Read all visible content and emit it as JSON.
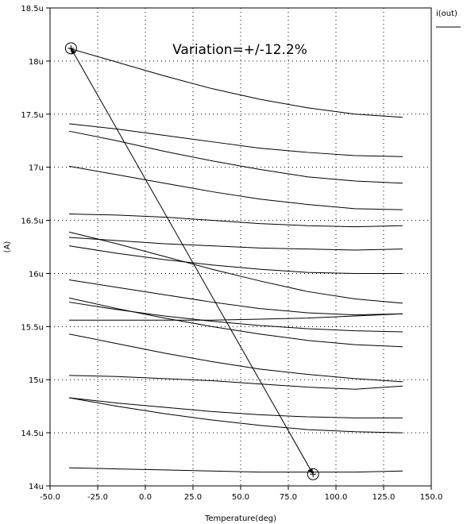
{
  "chart_data": {
    "type": "line",
    "xlabel": "Temperature(deg)",
    "ylabel": "(A)",
    "xlim": [
      -50,
      150
    ],
    "ylim": [
      14.0,
      18.5
    ],
    "x_ticks": [
      -50,
      -25,
      0,
      25,
      50,
      75,
      100,
      125,
      150
    ],
    "x_tick_labels": [
      "-50.0",
      "-25.0",
      "0.0",
      "25.0",
      "50.0",
      "75.0",
      "100.0",
      "125.0",
      "150.0"
    ],
    "y_ticks": [
      14.0,
      14.5,
      15.0,
      15.5,
      16.0,
      16.5,
      17.0,
      17.5,
      18.0,
      18.5
    ],
    "y_tick_labels": [
      "14u",
      "14.5u",
      "15u",
      "15.5u",
      "16u",
      "16.5u",
      "17u",
      "17.5u",
      "18u",
      "18.5u"
    ],
    "grid": true,
    "legend": {
      "label": "i(out)",
      "placement": "top-right"
    },
    "annotation": "Variation=+/-12.2%",
    "x": [
      -40,
      -15,
      10,
      35,
      60,
      85,
      110,
      135
    ],
    "series": [
      {
        "values": [
          18.12,
          17.99,
          17.86,
          17.74,
          17.64,
          17.56,
          17.5,
          17.47
        ]
      },
      {
        "values": [
          17.41,
          17.36,
          17.3,
          17.24,
          17.18,
          17.14,
          17.11,
          17.1
        ]
      },
      {
        "values": [
          17.34,
          17.25,
          17.15,
          17.06,
          16.98,
          16.91,
          16.87,
          16.85
        ]
      },
      {
        "values": [
          17.01,
          16.93,
          16.85,
          16.77,
          16.7,
          16.65,
          16.61,
          16.6
        ]
      },
      {
        "values": [
          16.56,
          16.55,
          16.53,
          16.5,
          16.47,
          16.45,
          16.44,
          16.45
        ]
      },
      {
        "values": [
          16.39,
          16.28,
          16.16,
          16.04,
          15.93,
          15.83,
          15.76,
          15.72
        ]
      },
      {
        "values": [
          16.34,
          16.31,
          16.28,
          16.26,
          16.24,
          16.23,
          16.22,
          16.23
        ]
      },
      {
        "values": [
          16.26,
          16.19,
          16.13,
          16.08,
          16.04,
          16.01,
          16.0,
          16.0
        ]
      },
      {
        "values": [
          15.94,
          15.87,
          15.8,
          15.73,
          15.67,
          15.63,
          15.61,
          15.62
        ]
      },
      {
        "values": [
          15.77,
          15.67,
          15.58,
          15.5,
          15.43,
          15.37,
          15.33,
          15.31
        ]
      },
      {
        "values": [
          15.73,
          15.66,
          15.6,
          15.55,
          15.51,
          15.48,
          15.46,
          15.45
        ]
      },
      {
        "values": [
          15.56,
          15.56,
          15.56,
          15.56,
          15.57,
          15.58,
          15.6,
          15.62
        ]
      },
      {
        "values": [
          15.43,
          15.34,
          15.25,
          15.17,
          15.1,
          15.05,
          15.01,
          14.98
        ]
      },
      {
        "values": [
          15.04,
          15.03,
          15.01,
          14.99,
          14.96,
          14.93,
          14.91,
          14.94
        ]
      },
      {
        "values": [
          14.83,
          14.78,
          14.74,
          14.7,
          14.67,
          14.65,
          14.64,
          14.64
        ]
      },
      {
        "values": [
          14.83,
          14.75,
          14.68,
          14.62,
          14.57,
          14.53,
          14.51,
          14.5
        ]
      },
      {
        "values": [
          14.17,
          14.16,
          14.15,
          14.14,
          14.13,
          14.13,
          14.13,
          14.14
        ]
      }
    ],
    "markers": [
      {
        "x": -39,
        "y": 18.12
      },
      {
        "x": 88,
        "y": 14.11
      }
    ]
  }
}
